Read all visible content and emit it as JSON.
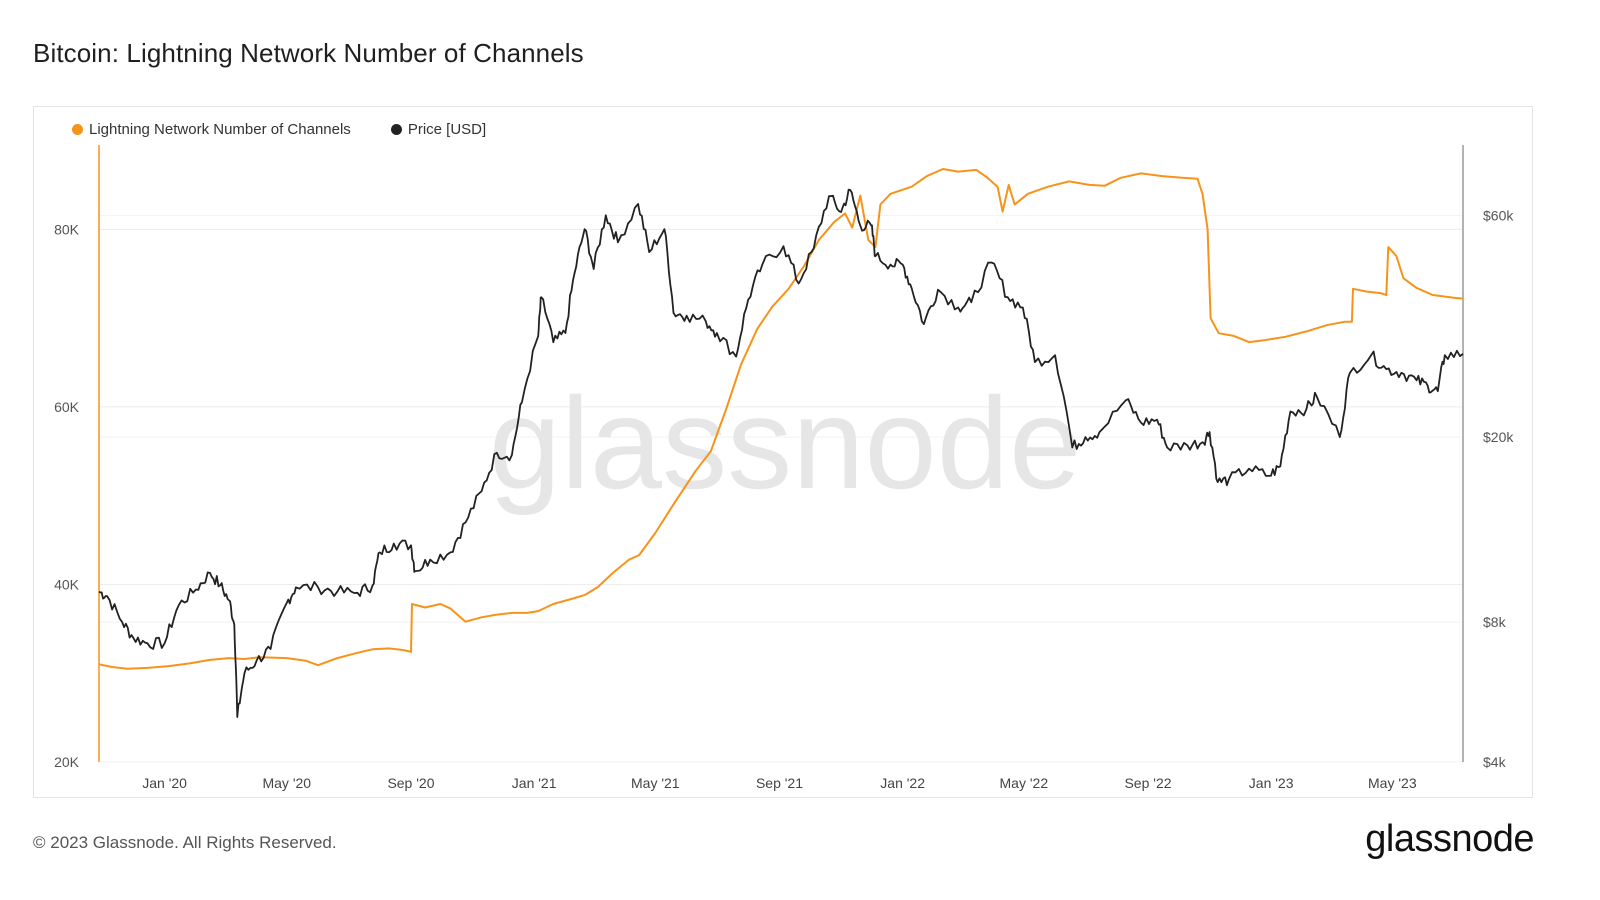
{
  "title": "Bitcoin: Lightning Network Number of Channels",
  "footer": "© 2023 Glassnode. All Rights Reserved.",
  "brand": "glassnode",
  "watermark": "glassnode",
  "colors": {
    "channels": "#f7931a",
    "price": "#222222"
  },
  "chart_data": {
    "type": "line",
    "title": "Bitcoin: Lightning Network Number of Channels",
    "x_tick_labels": [
      "Jan '20",
      "May '20",
      "Sep '20",
      "Jan '21",
      "May '21",
      "Sep '21",
      "Jan '22",
      "May '22",
      "Sep '22",
      "Jan '23",
      "May '23"
    ],
    "x_tick_dates": [
      "2020-01-01",
      "2020-05-01",
      "2020-09-01",
      "2021-01-01",
      "2021-05-01",
      "2021-09-01",
      "2022-01-01",
      "2022-05-01",
      "2022-09-01",
      "2023-01-01",
      "2023-05-01"
    ],
    "xlim": [
      "2019-10-28",
      "2023-07-10"
    ],
    "left_axis": {
      "ticks": [
        20000,
        40000,
        60000,
        80000
      ],
      "tick_labels": [
        "20K",
        "40K",
        "60K",
        "80K"
      ],
      "ylim": [
        20000,
        89500
      ]
    },
    "right_axis": {
      "scale": "log",
      "ticks": [
        4000,
        8000,
        20000,
        60000
      ],
      "tick_labels": [
        "$4k",
        "$8k",
        "$20k",
        "$60k"
      ],
      "ylim": [
        4000,
        85000
      ]
    },
    "grid": true,
    "legend": "top-left",
    "series": [
      {
        "name": "Lightning Network Number of Channels",
        "axis": "left",
        "color": "#f7931a",
        "points": [
          [
            "2019-10-28",
            31000
          ],
          [
            "2019-11-10",
            30700
          ],
          [
            "2019-11-25",
            30500
          ],
          [
            "2019-12-15",
            30600
          ],
          [
            "2020-01-05",
            30800
          ],
          [
            "2020-01-25",
            31100
          ],
          [
            "2020-02-15",
            31500
          ],
          [
            "2020-03-05",
            31700
          ],
          [
            "2020-03-20",
            31600
          ],
          [
            "2020-04-05",
            31800
          ],
          [
            "2020-05-01",
            31700
          ],
          [
            "2020-05-20",
            31400
          ],
          [
            "2020-06-01",
            30900
          ],
          [
            "2020-06-20",
            31700
          ],
          [
            "2020-07-10",
            32300
          ],
          [
            "2020-07-25",
            32700
          ],
          [
            "2020-08-10",
            32800
          ],
          [
            "2020-08-25",
            32600
          ],
          [
            "2020-09-01",
            32400
          ],
          [
            "2020-09-02",
            37800
          ],
          [
            "2020-09-15",
            37400
          ],
          [
            "2020-09-30",
            37800
          ],
          [
            "2020-10-10",
            37300
          ],
          [
            "2020-10-25",
            35800
          ],
          [
            "2020-11-10",
            36300
          ],
          [
            "2020-11-25",
            36600
          ],
          [
            "2020-12-10",
            36800
          ],
          [
            "2020-12-25",
            36800
          ],
          [
            "2021-01-05",
            37000
          ],
          [
            "2021-01-20",
            37800
          ],
          [
            "2021-02-05",
            38300
          ],
          [
            "2021-02-20",
            38800
          ],
          [
            "2021-03-05",
            39700
          ],
          [
            "2021-03-20",
            41300
          ],
          [
            "2021-04-05",
            42800
          ],
          [
            "2021-04-15",
            43300
          ],
          [
            "2021-05-01",
            45800
          ],
          [
            "2021-05-20",
            49200
          ],
          [
            "2021-06-10",
            52800
          ],
          [
            "2021-06-25",
            55000
          ],
          [
            "2021-07-10",
            59700
          ],
          [
            "2021-07-25",
            64800
          ],
          [
            "2021-08-10",
            68800
          ],
          [
            "2021-08-25",
            71300
          ],
          [
            "2021-09-10",
            73300
          ],
          [
            "2021-09-25",
            75800
          ],
          [
            "2021-10-10",
            78800
          ],
          [
            "2021-10-25",
            80800
          ],
          [
            "2021-11-05",
            81800
          ],
          [
            "2021-11-12",
            80200
          ],
          [
            "2021-11-20",
            83800
          ],
          [
            "2021-11-28",
            78800
          ],
          [
            "2021-12-05",
            78000
          ],
          [
            "2021-12-10",
            82800
          ],
          [
            "2021-12-20",
            84000
          ],
          [
            "2022-01-10",
            84800
          ],
          [
            "2022-01-25",
            86000
          ],
          [
            "2022-02-10",
            86800
          ],
          [
            "2022-02-25",
            86500
          ],
          [
            "2022-03-15",
            86700
          ],
          [
            "2022-03-25",
            85900
          ],
          [
            "2022-04-05",
            84800
          ],
          [
            "2022-04-10",
            82000
          ],
          [
            "2022-04-16",
            85000
          ],
          [
            "2022-04-22",
            82800
          ],
          [
            "2022-05-05",
            84000
          ],
          [
            "2022-05-25",
            84800
          ],
          [
            "2022-06-15",
            85400
          ],
          [
            "2022-07-05",
            85000
          ],
          [
            "2022-07-20",
            84900
          ],
          [
            "2022-08-05",
            85800
          ],
          [
            "2022-08-25",
            86300
          ],
          [
            "2022-09-15",
            86000
          ],
          [
            "2022-10-05",
            85800
          ],
          [
            "2022-10-20",
            85700
          ],
          [
            "2022-10-25",
            84000
          ],
          [
            "2022-10-30",
            80000
          ],
          [
            "2022-11-02",
            70000
          ],
          [
            "2022-11-10",
            68300
          ],
          [
            "2022-11-25",
            68000
          ],
          [
            "2022-12-10",
            67300
          ],
          [
            "2022-12-25",
            67500
          ],
          [
            "2023-01-15",
            67900
          ],
          [
            "2023-02-05",
            68500
          ],
          [
            "2023-02-25",
            69200
          ],
          [
            "2023-03-15",
            69600
          ],
          [
            "2023-03-22",
            69600
          ],
          [
            "2023-03-23",
            73300
          ],
          [
            "2023-04-05",
            73000
          ],
          [
            "2023-04-20",
            72800
          ],
          [
            "2023-04-25",
            72600
          ],
          [
            "2023-04-27",
            78000
          ],
          [
            "2023-05-05",
            77000
          ],
          [
            "2023-05-12",
            74500
          ],
          [
            "2023-05-25",
            73400
          ],
          [
            "2023-06-10",
            72600
          ],
          [
            "2023-07-01",
            72300
          ],
          [
            "2023-07-10",
            72200
          ]
        ]
      },
      {
        "name": "Price [USD]",
        "axis": "right",
        "color": "#222222",
        "points": [
          [
            "2019-10-28",
            9300
          ],
          [
            "2019-11-05",
            9100
          ],
          [
            "2019-11-20",
            8000
          ],
          [
            "2019-12-01",
            7400
          ],
          [
            "2019-12-15",
            7200
          ],
          [
            "2020-01-01",
            7200
          ],
          [
            "2020-01-15",
            8700
          ],
          [
            "2020-02-01",
            9400
          ],
          [
            "2020-02-15",
            10200
          ],
          [
            "2020-02-25",
            9600
          ],
          [
            "2020-03-05",
            8900
          ],
          [
            "2020-03-10",
            7900
          ],
          [
            "2020-03-13",
            5000
          ],
          [
            "2020-03-20",
            6200
          ],
          [
            "2020-04-01",
            6600
          ],
          [
            "2020-04-15",
            7000
          ],
          [
            "2020-05-01",
            8800
          ],
          [
            "2020-05-10",
            9500
          ],
          [
            "2020-06-01",
            9500
          ],
          [
            "2020-06-20",
            9300
          ],
          [
            "2020-07-10",
            9250
          ],
          [
            "2020-07-25",
            9600
          ],
          [
            "2020-08-01",
            11300
          ],
          [
            "2020-08-15",
            11800
          ],
          [
            "2020-09-01",
            11700
          ],
          [
            "2020-09-05",
            10300
          ],
          [
            "2020-09-20",
            10900
          ],
          [
            "2020-10-10",
            11300
          ],
          [
            "2020-10-25",
            13100
          ],
          [
            "2020-11-10",
            15300
          ],
          [
            "2020-11-25",
            18500
          ],
          [
            "2020-12-10",
            18300
          ],
          [
            "2020-12-20",
            23800
          ],
          [
            "2021-01-05",
            33000
          ],
          [
            "2021-01-08",
            40000
          ],
          [
            "2021-01-20",
            32000
          ],
          [
            "2021-02-01",
            33500
          ],
          [
            "2021-02-10",
            45000
          ],
          [
            "2021-02-20",
            56000
          ],
          [
            "2021-03-01",
            46000
          ],
          [
            "2021-03-13",
            60000
          ],
          [
            "2021-03-25",
            52500
          ],
          [
            "2021-04-14",
            63500
          ],
          [
            "2021-04-25",
            50000
          ],
          [
            "2021-05-10",
            56000
          ],
          [
            "2021-05-19",
            37000
          ],
          [
            "2021-06-01",
            36500
          ],
          [
            "2021-06-20",
            35500
          ],
          [
            "2021-07-01",
            33500
          ],
          [
            "2021-07-20",
            29800
          ],
          [
            "2021-08-01",
            39500
          ],
          [
            "2021-08-15",
            47000
          ],
          [
            "2021-09-05",
            51500
          ],
          [
            "2021-09-20",
            42800
          ],
          [
            "2021-10-05",
            51000
          ],
          [
            "2021-10-20",
            66000
          ],
          [
            "2021-11-01",
            61000
          ],
          [
            "2021-11-10",
            68000
          ],
          [
            "2021-11-20",
            57000
          ],
          [
            "2021-12-01",
            57000
          ],
          [
            "2021-12-05",
            49000
          ],
          [
            "2021-12-20",
            47000
          ],
          [
            "2022-01-01",
            47000
          ],
          [
            "2022-01-10",
            41800
          ],
          [
            "2022-01-22",
            35000
          ],
          [
            "2022-02-05",
            41500
          ],
          [
            "2022-02-25",
            38000
          ],
          [
            "2022-03-10",
            39000
          ],
          [
            "2022-03-30",
            47500
          ],
          [
            "2022-04-15",
            40000
          ],
          [
            "2022-04-30",
            38000
          ],
          [
            "2022-05-12",
            29000
          ],
          [
            "2022-06-01",
            30000
          ],
          [
            "2022-06-18",
            19000
          ],
          [
            "2022-07-01",
            20000
          ],
          [
            "2022-07-15",
            20500
          ],
          [
            "2022-08-10",
            24000
          ],
          [
            "2022-08-25",
            21500
          ],
          [
            "2022-09-10",
            21800
          ],
          [
            "2022-09-20",
            19000
          ],
          [
            "2022-10-10",
            19200
          ],
          [
            "2022-10-25",
            19500
          ],
          [
            "2022-11-01",
            20500
          ],
          [
            "2022-11-09",
            16000
          ],
          [
            "2022-11-20",
            16200
          ],
          [
            "2022-12-10",
            17100
          ],
          [
            "2022-12-30",
            16500
          ],
          [
            "2023-01-10",
            17300
          ],
          [
            "2023-01-20",
            22700
          ],
          [
            "2023-02-05",
            23000
          ],
          [
            "2023-02-15",
            24500
          ],
          [
            "2023-03-10",
            20000
          ],
          [
            "2023-03-20",
            27500
          ],
          [
            "2023-04-10",
            30000
          ],
          [
            "2023-04-25",
            28000
          ],
          [
            "2023-05-10",
            27500
          ],
          [
            "2023-05-25",
            26500
          ],
          [
            "2023-06-05",
            25800
          ],
          [
            "2023-06-15",
            25100
          ],
          [
            "2023-06-22",
            30000
          ],
          [
            "2023-07-10",
            30200
          ]
        ]
      }
    ]
  }
}
